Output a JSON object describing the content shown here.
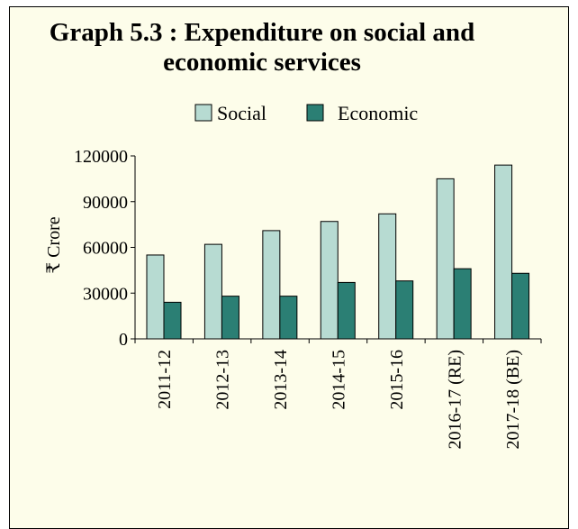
{
  "colors": {
    "background": "#fdfdea",
    "social": "#b7dbd2",
    "economic": "#2b7f74",
    "outline": "#000000"
  },
  "chart_data": {
    "type": "bar",
    "title_lines": [
      "Graph 5.3 : Expenditure on social and",
      "economic services"
    ],
    "ylabel": "₹ Crore",
    "xlabel": "",
    "categories": [
      "2011-12",
      "2012-13",
      "2013-14",
      "2014-15",
      "2015-16",
      "2016-17 (RE)",
      "2017-18 (BE)"
    ],
    "series": [
      {
        "name": "Social",
        "values": [
          55000,
          62000,
          71000,
          77000,
          82000,
          105000,
          114000
        ]
      },
      {
        "name": "Economic",
        "values": [
          24000,
          28000,
          28000,
          37000,
          38000,
          46000,
          43000
        ]
      }
    ],
    "ylim": [
      0,
      120000
    ],
    "yticks": [
      0,
      30000,
      60000,
      90000,
      120000
    ],
    "legend_position": "top",
    "grid": false
  }
}
